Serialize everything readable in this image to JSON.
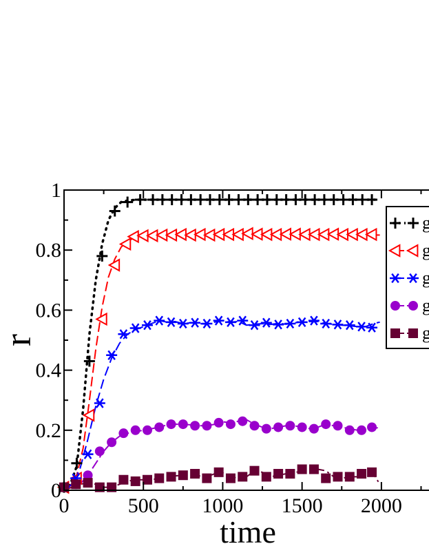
{
  "chart_data": {
    "type": "line",
    "title": "",
    "xlabel": "time",
    "ylabel": "r",
    "xlim": [
      0,
      2300
    ],
    "ylim": [
      0,
      1
    ],
    "xticks": [
      "0",
      "500",
      "1000",
      "1500",
      "2000"
    ],
    "yticks": [
      "0",
      "0.2",
      "0.4",
      "0.6",
      "0.8",
      "1"
    ],
    "legend_position": "top-right (cut off at right edge)",
    "grid": false,
    "series": [
      {
        "name": "g",
        "color": "#000000",
        "marker": "plus",
        "line_style": "dotted",
        "line_x": [
          0,
          40,
          80,
          120,
          160,
          200,
          240,
          280,
          320,
          360,
          400,
          460,
          520,
          600,
          700,
          800,
          1000,
          1200,
          1400,
          1600,
          1800,
          1990
        ],
        "line_y": [
          0.0,
          0.02,
          0.08,
          0.27,
          0.52,
          0.7,
          0.82,
          0.9,
          0.94,
          0.96,
          0.965,
          0.968,
          0.968,
          0.968,
          0.968,
          0.968,
          0.968,
          0.968,
          0.968,
          0.968,
          0.968,
          0.968
        ],
        "marker_x": [
          0,
          80,
          160,
          240,
          320,
          400,
          480,
          560,
          620,
          680,
          740,
          800,
          860,
          920,
          980,
          1040,
          1100,
          1160,
          1220,
          1280,
          1340,
          1400,
          1460,
          1520,
          1580,
          1640,
          1700,
          1760,
          1820,
          1880,
          1940
        ],
        "marker_y": [
          0.01,
          0.09,
          0.43,
          0.78,
          0.93,
          0.96,
          0.968,
          0.968,
          0.968,
          0.968,
          0.968,
          0.968,
          0.968,
          0.968,
          0.968,
          0.968,
          0.968,
          0.968,
          0.968,
          0.968,
          0.968,
          0.968,
          0.968,
          0.968,
          0.968,
          0.968,
          0.968,
          0.968,
          0.968,
          0.968,
          0.968
        ]
      },
      {
        "name": "g",
        "color": "#ff0000",
        "marker": "triangle-left-open",
        "line_style": "dashed",
        "line_x": [
          0,
          40,
          80,
          120,
          160,
          200,
          240,
          280,
          320,
          360,
          400,
          460,
          520,
          600,
          700,
          800,
          1000,
          1200,
          1400,
          1600,
          1800,
          1990
        ],
        "line_y": [
          0.0,
          0.015,
          0.05,
          0.14,
          0.3,
          0.47,
          0.61,
          0.71,
          0.77,
          0.81,
          0.83,
          0.845,
          0.848,
          0.85,
          0.85,
          0.85,
          0.85,
          0.852,
          0.852,
          0.852,
          0.852,
          0.85
        ],
        "marker_x": [
          0,
          80,
          160,
          240,
          320,
          390,
          440,
          500,
          560,
          620,
          680,
          740,
          800,
          860,
          920,
          980,
          1040,
          1100,
          1160,
          1220,
          1280,
          1340,
          1400,
          1460,
          1520,
          1580,
          1640,
          1700,
          1760,
          1820,
          1880,
          1940
        ],
        "marker_y": [
          0.01,
          0.04,
          0.25,
          0.57,
          0.75,
          0.82,
          0.845,
          0.848,
          0.848,
          0.85,
          0.85,
          0.852,
          0.85,
          0.852,
          0.85,
          0.852,
          0.852,
          0.852,
          0.855,
          0.853,
          0.852,
          0.852,
          0.853,
          0.853,
          0.852,
          0.852,
          0.852,
          0.853,
          0.852,
          0.852,
          0.852,
          0.852
        ]
      },
      {
        "name": "g",
        "color": "#0000ff",
        "marker": "asterisk",
        "line_style": "dashed",
        "line_x": [
          0,
          50,
          100,
          150,
          200,
          250,
          300,
          350,
          400,
          450,
          500,
          550,
          600,
          650,
          700,
          750,
          800,
          850,
          900,
          950,
          1000,
          1050,
          1100,
          1150,
          1200,
          1250,
          1300,
          1350,
          1400,
          1450,
          1500,
          1550,
          1600,
          1650,
          1700,
          1750,
          1800,
          1850,
          1900,
          1950,
          1990
        ],
        "line_y": [
          0.0,
          0.02,
          0.07,
          0.17,
          0.28,
          0.37,
          0.44,
          0.49,
          0.52,
          0.535,
          0.545,
          0.555,
          0.565,
          0.56,
          0.562,
          0.555,
          0.558,
          0.555,
          0.553,
          0.56,
          0.565,
          0.56,
          0.562,
          0.55,
          0.553,
          0.555,
          0.552,
          0.556,
          0.553,
          0.558,
          0.56,
          0.562,
          0.562,
          0.555,
          0.553,
          0.55,
          0.548,
          0.545,
          0.545,
          0.555,
          0.56
        ],
        "marker_x": [
          0,
          75,
          150,
          225,
          300,
          375,
          450,
          525,
          600,
          675,
          750,
          825,
          900,
          975,
          1050,
          1125,
          1200,
          1275,
          1350,
          1425,
          1500,
          1575,
          1650,
          1725,
          1800,
          1875,
          1940
        ],
        "marker_y": [
          0.01,
          0.04,
          0.12,
          0.29,
          0.45,
          0.52,
          0.54,
          0.55,
          0.565,
          0.56,
          0.555,
          0.558,
          0.555,
          0.565,
          0.56,
          0.565,
          0.55,
          0.558,
          0.552,
          0.555,
          0.56,
          0.565,
          0.555,
          0.552,
          0.55,
          0.545,
          0.542
        ]
      },
      {
        "name": "g",
        "color": "#9900cc",
        "marker": "circle",
        "line_style": "dash-dot",
        "line_x": [
          0,
          50,
          100,
          150,
          200,
          250,
          300,
          350,
          400,
          450,
          500,
          550,
          600,
          650,
          700,
          750,
          800,
          850,
          900,
          950,
          1000,
          1050,
          1100,
          1150,
          1200,
          1250,
          1300,
          1350,
          1400,
          1450,
          1500,
          1550,
          1600,
          1650,
          1700,
          1750,
          1800,
          1850,
          1900,
          1950,
          1990
        ],
        "line_y": [
          0.0,
          0.01,
          0.02,
          0.05,
          0.09,
          0.13,
          0.16,
          0.18,
          0.19,
          0.195,
          0.2,
          0.205,
          0.21,
          0.218,
          0.22,
          0.22,
          0.218,
          0.215,
          0.215,
          0.22,
          0.228,
          0.225,
          0.23,
          0.235,
          0.22,
          0.21,
          0.205,
          0.21,
          0.215,
          0.215,
          0.21,
          0.205,
          0.21,
          0.22,
          0.215,
          0.21,
          0.205,
          0.2,
          0.2,
          0.205,
          0.21
        ],
        "marker_x": [
          0,
          75,
          150,
          225,
          300,
          375,
          450,
          525,
          600,
          675,
          750,
          825,
          900,
          975,
          1050,
          1125,
          1200,
          1275,
          1350,
          1425,
          1500,
          1575,
          1650,
          1725,
          1800,
          1875,
          1940
        ],
        "marker_y": [
          0.01,
          0.02,
          0.05,
          0.13,
          0.16,
          0.19,
          0.2,
          0.2,
          0.21,
          0.22,
          0.22,
          0.215,
          0.215,
          0.225,
          0.22,
          0.23,
          0.215,
          0.205,
          0.21,
          0.215,
          0.21,
          0.205,
          0.22,
          0.215,
          0.2,
          0.2,
          0.21
        ]
      },
      {
        "name": "g",
        "color": "#660033",
        "marker": "square",
        "line_style": "dash-dot",
        "line_x": [
          0,
          50,
          100,
          150,
          200,
          250,
          300,
          350,
          400,
          450,
          500,
          550,
          600,
          650,
          700,
          750,
          800,
          850,
          900,
          950,
          1000,
          1050,
          1100,
          1150,
          1200,
          1250,
          1300,
          1350,
          1400,
          1450,
          1500,
          1550,
          1600,
          1650,
          1700,
          1750,
          1800,
          1850,
          1900,
          1950,
          1990
        ],
        "line_y": [
          0.0,
          0.01,
          0.02,
          0.025,
          0.02,
          0.01,
          0.01,
          0.02,
          0.03,
          0.035,
          0.035,
          0.035,
          0.04,
          0.045,
          0.048,
          0.05,
          0.052,
          0.048,
          0.045,
          0.055,
          0.058,
          0.045,
          0.04,
          0.045,
          0.065,
          0.06,
          0.045,
          0.05,
          0.055,
          0.06,
          0.062,
          0.07,
          0.07,
          0.065,
          0.045,
          0.04,
          0.045,
          0.045,
          0.05,
          0.055,
          0.02
        ],
        "marker_x": [
          0,
          75,
          150,
          225,
          300,
          375,
          450,
          525,
          600,
          675,
          750,
          825,
          900,
          975,
          1050,
          1125,
          1200,
          1275,
          1350,
          1425,
          1500,
          1575,
          1650,
          1725,
          1800,
          1875,
          1940
        ],
        "marker_y": [
          0.01,
          0.02,
          0.025,
          0.01,
          0.01,
          0.035,
          0.03,
          0.035,
          0.04,
          0.045,
          0.05,
          0.055,
          0.04,
          0.06,
          0.04,
          0.045,
          0.065,
          0.045,
          0.055,
          0.055,
          0.07,
          0.07,
          0.04,
          0.045,
          0.045,
          0.055,
          0.06
        ]
      }
    ]
  }
}
